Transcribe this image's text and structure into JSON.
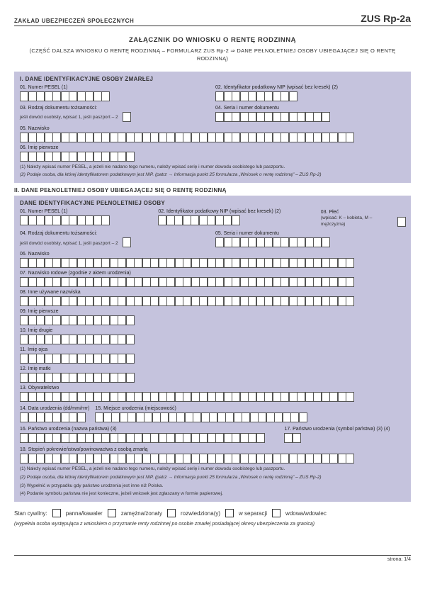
{
  "header": {
    "agency": "ZAKŁAD UBEZPIECZEŃ SPOŁECZNYCH",
    "formCode": "ZUS Rp-2a"
  },
  "title": "ZAŁĄCZNIK DO WNIOSKU O RENTĘ RODZINNĄ",
  "subtitle": "(CZĘŚĆ DALSZA WNIOSKU O RENTĘ RODZINNĄ – FORMULARZ ZUS Rp-2 ⇒ DANE PEŁNOLETNIEJ OSOBY UBIEGAJĄCEJ SIĘ O RENTĘ RODZINNĄ)",
  "section1": {
    "heading": "I. DANE IDENTYFIKACYJNE OSOBY ZMARŁEJ",
    "f01": "01. Numer PESEL (1)",
    "f02": "02. Identyfikator podatkowy NIP (wpisać bez kresek) (2)",
    "f03": "03. Rodzaj dokumentu tożsamości:",
    "f03sub": "jeśli dowód osobisty, wpisać 1, jeśli paszport – 2",
    "f04": "04. Seria i numer dokumentu",
    "f05": "05. Nazwisko",
    "f06": "06. Imię pierwsze",
    "note1": "(1) Należy wpisać numer PESEL, a jeżeli nie nadano tego numeru, należy wpisać serię i numer dowodu osobistego lub paszportu.",
    "note2": "(2) Podaje osoba, dla której identyfikatorem podatkowym jest NIP.  (patrz → Informacja punkt 25 formularza „Wniosek o rentę rodzinną\" – ZUS Rp-2)"
  },
  "section2": {
    "heading": "II. DANE PEŁNOLETNIEJ OSOBY UBIEGAJĄCEJ SIĘ O RENTĘ RODZINNĄ",
    "subheading": "DANE IDENTYFIKACYJNE PEŁNOLETNIEJ OSOBY",
    "f01": "01. Numer PESEL (1)",
    "f02": "02. Identyfikator podatkowy NIP (wpisać bez kresek) (2)",
    "f03": "03. Płeć",
    "f03sub": "(wpisać: K – kobieta, M – mężczyzna)",
    "f04": "04. Rodzaj dokumentu tożsamości:",
    "f04sub": "jeśli dowód osobisty, wpisać 1, jeśli paszport – 2",
    "f05": "05. Seria i numer dokumentu",
    "f06": "06. Nazwisko",
    "f07": "07. Nazwisko rodowe (zgodnie z aktem urodzenia)",
    "f08": "08. Inne używane nazwiska",
    "f09": "09. Imię pierwsze",
    "f10": "10. Imię drugie",
    "f11": "11. Imię ojca",
    "f12": "12. Imię matki",
    "f13": "13. Obywatelstwo",
    "f14": "14. Data urodzenia (dd/mm/rrrr)",
    "f15": "15. Miejsce urodzenia (miejscowość)",
    "f16": "16. Państwo urodzenia (nazwa państwa) (3)",
    "f17": "17. Państwo urodzenia (symbol państwa) (3) (4)",
    "f18": "18. Stopień pokrewieństwa/powinowactwa z osobą zmarłą",
    "note1": "(1) Należy wpisać numer PESEL, a jeżeli nie nadano tego numeru, należy wpisać serię i numer dowodu osobistego lub paszportu.",
    "note2": "(2) Podaje osoba, dla której identyfikatorem podatkowym jest NIP.  (patrz → Informacja punkt 25 formularza „Wniosek o rentę rodzinną\" – ZUS Rp-2)",
    "note3": "(3) Wypełnić w przypadku gdy państwo urodzenia jest inne niż Polska.",
    "note4": "(4) Podanie symbolu państwa nie jest konieczne, jeżeli wniosek jest zgłaszany w formie papierowej."
  },
  "marital": {
    "label": "Stan cywilny:",
    "opt1": "panna/kawaler",
    "opt2": "zamężna/żonaty",
    "opt3": "rozwiedziona(y)",
    "opt4": "w separacji",
    "opt5": "wdowa/wdowiec",
    "note": "(wypełnia osoba występująca z wnioskiem o przyznanie renty rodzinnej po osobie zmarłej posiadającej okresy ubezpieczenia za granicą)"
  },
  "footer": "strona: 1/4",
  "layout": {
    "cellCounts": {
      "pesel": 11,
      "nip": 10,
      "docType": 1,
      "docNum": 14,
      "longRow": 41,
      "nameRow": 14,
      "dateD": 2,
      "dateM": 2,
      "dateY": 4,
      "place": 26,
      "country": 30,
      "countrySym": 2,
      "plec": 1
    },
    "colors": {
      "panelBg": "#c5c3dd",
      "cellBg": "#ffffff",
      "border": "#555555"
    }
  }
}
